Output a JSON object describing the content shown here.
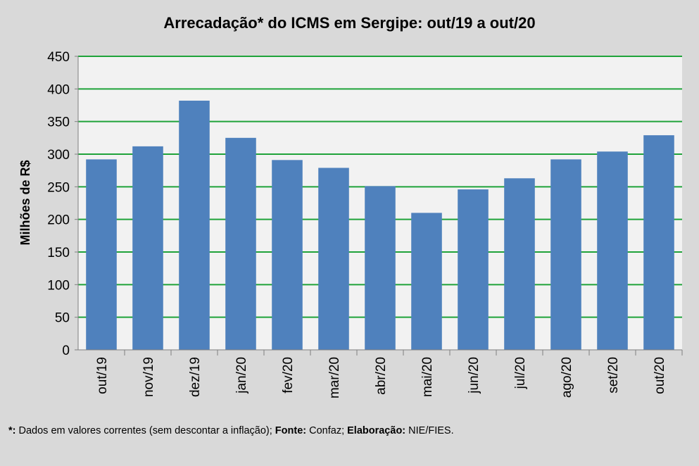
{
  "chart_data": {
    "type": "bar",
    "title": "Arrecadação* do ICMS em Sergipe: out/19 a out/20",
    "xlabel": "",
    "ylabel": "Milhões de R$",
    "ylim": [
      0,
      450
    ],
    "yticks": [
      0,
      50,
      100,
      150,
      200,
      250,
      300,
      350,
      400,
      450
    ],
    "grid": true,
    "categories": [
      "out/19",
      "nov/19",
      "dez/19",
      "jan/20",
      "fev/20",
      "mar/20",
      "abr/20",
      "mai/20",
      "jun/20",
      "jul/20",
      "ago/20",
      "set/20",
      "out/20"
    ],
    "values": [
      292,
      312,
      382,
      325,
      291,
      279,
      251,
      210,
      246,
      263,
      292,
      304,
      329
    ],
    "colors": {
      "bar": "#4f81bd",
      "grid": "#1fa33a",
      "plot_bg": "#f2f2f2",
      "background": "#d9d9d9"
    }
  },
  "footnote": {
    "star_label": "*:",
    "star_text": " Dados em valores correntes (sem descontar a inflação); ",
    "source_label": "Fonte:",
    "source_text": " Confaz; ",
    "elab_label": "Elaboração:",
    "elab_text": " NIE/FIES."
  }
}
